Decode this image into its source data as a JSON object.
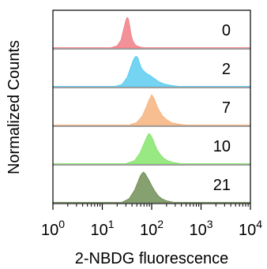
{
  "chart_data": {
    "type": "area",
    "kind": "stacked-histogram",
    "xlabel": "2-NBDG fluorescence",
    "ylabel": "Normalized Counts",
    "x_scale": "log",
    "xlim": [
      1,
      10000
    ],
    "x_ticks": [
      {
        "value": 1,
        "base": "10",
        "exp": "0"
      },
      {
        "value": 10,
        "base": "10",
        "exp": "1"
      },
      {
        "value": 100,
        "base": "10",
        "exp": "2"
      },
      {
        "value": 1000,
        "base": "10",
        "exp": "3"
      },
      {
        "value": 10000,
        "base": "10",
        "exp": "4"
      }
    ],
    "series": [
      {
        "name": "0",
        "color": "#f07f86",
        "x": [
          15,
          20,
          24,
          27,
          29,
          30,
          31,
          32,
          33,
          34,
          36,
          38,
          41,
          45,
          50,
          58,
          70
        ],
        "y": [
          0.0,
          0.06,
          0.25,
          0.6,
          0.8,
          0.9,
          0.96,
          1.0,
          0.98,
          0.92,
          0.7,
          0.45,
          0.25,
          0.12,
          0.06,
          0.02,
          0.0
        ]
      },
      {
        "name": "2",
        "color": "#5ccdf0",
        "x": [
          18,
          25,
          32,
          38,
          42,
          45,
          48,
          52,
          56,
          62,
          70,
          80,
          95,
          115,
          140,
          180,
          250,
          350
        ],
        "y": [
          0.0,
          0.06,
          0.3,
          0.65,
          0.85,
          0.95,
          1.0,
          0.96,
          0.8,
          0.6,
          0.5,
          0.42,
          0.35,
          0.25,
          0.15,
          0.08,
          0.03,
          0.0
        ]
      },
      {
        "name": "7",
        "color": "#f6b37e",
        "x": [
          35,
          50,
          65,
          78,
          88,
          95,
          100,
          105,
          112,
          120,
          130,
          145,
          165,
          200,
          250,
          350,
          500
        ],
        "y": [
          0.0,
          0.08,
          0.3,
          0.6,
          0.82,
          0.92,
          1.0,
          0.95,
          0.88,
          0.75,
          0.6,
          0.45,
          0.3,
          0.18,
          0.08,
          0.03,
          0.0
        ]
      },
      {
        "name": "10",
        "color": "#86e56d",
        "x": [
          30,
          45,
          58,
          68,
          76,
          82,
          88,
          95,
          105,
          115,
          130,
          150,
          175,
          210,
          270,
          400
        ],
        "y": [
          0.0,
          0.1,
          0.35,
          0.62,
          0.8,
          0.92,
          1.0,
          0.95,
          0.82,
          0.65,
          0.45,
          0.3,
          0.18,
          0.1,
          0.04,
          0.0
        ]
      },
      {
        "name": "21",
        "color": "#728f57",
        "x": [
          25,
          35,
          45,
          52,
          58,
          63,
          68,
          73,
          80,
          90,
          100,
          115,
          135,
          160,
          200,
          280
        ],
        "y": [
          0.0,
          0.12,
          0.4,
          0.65,
          0.85,
          0.95,
          1.0,
          0.96,
          0.85,
          0.7,
          0.55,
          0.38,
          0.22,
          0.12,
          0.05,
          0.0
        ]
      }
    ],
    "grid": false,
    "legend": "none"
  }
}
